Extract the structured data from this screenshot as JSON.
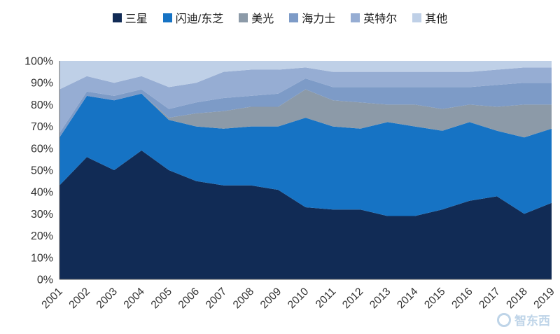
{
  "watermark": {
    "text": "智东西"
  },
  "chart_data": {
    "type": "area",
    "stacked": true,
    "percent": true,
    "title": "",
    "xlabel": "",
    "ylabel": "",
    "ylim": [
      0,
      100
    ],
    "grid": false,
    "legend_position": "top",
    "yticks": [
      "0%",
      "10%",
      "20%",
      "30%",
      "40%",
      "50%",
      "60%",
      "70%",
      "80%",
      "90%",
      "100%"
    ],
    "x": [
      "2001",
      "2002",
      "2003",
      "2004",
      "2005",
      "2006",
      "2007",
      "2008",
      "2009",
      "2010",
      "2011",
      "2012",
      "2013",
      "2014",
      "2015",
      "2016",
      "2017",
      "2018",
      "2019"
    ],
    "series": [
      {
        "id": "samsung",
        "name": "三星",
        "color": "#112b55",
        "values": [
          43,
          56,
          50,
          59,
          50,
          45,
          43,
          43,
          41,
          33,
          32,
          32,
          29,
          29,
          32,
          36,
          38,
          30,
          35
        ]
      },
      {
        "id": "sandisk-toshiba",
        "name": "闪迪/东芝",
        "color": "#1673c4",
        "values": [
          22,
          28,
          32,
          26,
          23,
          25,
          26,
          27,
          29,
          41,
          38,
          37,
          43,
          41,
          36,
          36,
          30,
          35,
          34
        ]
      },
      {
        "id": "micron",
        "name": "美光",
        "color": "#8c9aa8",
        "values": [
          0,
          0,
          0,
          0,
          1,
          6,
          8,
          9,
          9,
          13,
          12,
          12,
          8,
          10,
          10,
          8,
          11,
          15,
          11
        ]
      },
      {
        "id": "hynix",
        "name": "海力士",
        "color": "#7d9bc7",
        "values": [
          2,
          2,
          2,
          2,
          4,
          5,
          6,
          5,
          6,
          5,
          6,
          7,
          8,
          8,
          10,
          8,
          10,
          10,
          10
        ]
      },
      {
        "id": "intel",
        "name": "英特尔",
        "color": "#96add3",
        "values": [
          20,
          7,
          6,
          6,
          10,
          9,
          12,
          12,
          11,
          5,
          7,
          7,
          7,
          7,
          7,
          7,
          7,
          7,
          7
        ]
      },
      {
        "id": "others",
        "name": "其他",
        "color": "#bfd0e7",
        "values": [
          13,
          7,
          10,
          7,
          12,
          10,
          5,
          4,
          4,
          3,
          5,
          5,
          5,
          5,
          5,
          5,
          4,
          3,
          3
        ]
      }
    ]
  }
}
